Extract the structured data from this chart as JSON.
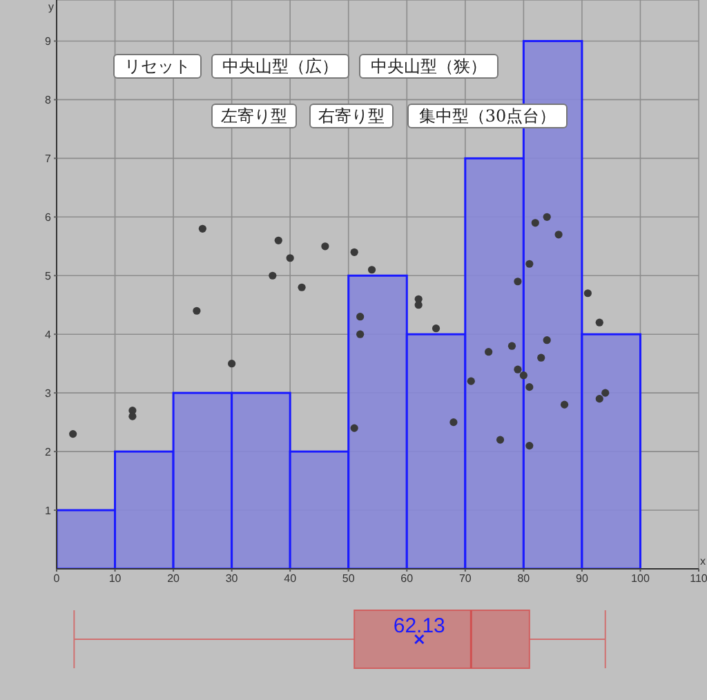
{
  "chart_data": [
    {
      "type": "histogram",
      "xlabel": "x",
      "ylabel": "y",
      "bins": [
        0,
        10,
        20,
        30,
        40,
        50,
        60,
        70,
        80,
        90,
        100
      ],
      "values": [
        1,
        2,
        3,
        3,
        2,
        5,
        4,
        7,
        9,
        4
      ],
      "color": "#8787d8",
      "series": [
        {
          "type": "scatter",
          "color": "#3a3a3a",
          "x": [
            2.8,
            13,
            13,
            25,
            24,
            30,
            38,
            37,
            40,
            42,
            46,
            51,
            54,
            52,
            52,
            51,
            62,
            62,
            65,
            68,
            71,
            74,
            76,
            78,
            79,
            81,
            82,
            84,
            86,
            79,
            80,
            81,
            83,
            84,
            81,
            87,
            91,
            93,
            93,
            94
          ],
          "values": [
            2.3,
            2.7,
            2.6,
            5.8,
            4.4,
            3.5,
            5.6,
            5.0,
            5.3,
            4.8,
            5.5,
            5.4,
            5.1,
            4.3,
            4.0,
            2.4,
            4.6,
            4.5,
            4.1,
            2.5,
            3.2,
            3.7,
            2.2,
            3.8,
            4.9,
            5.2,
            5.9,
            6.0,
            5.7,
            3.4,
            3.3,
            3.1,
            3.6,
            3.9,
            2.1,
            2.8,
            4.7,
            4.2,
            2.9,
            3.0
          ]
        }
      ],
      "xlim": [
        0,
        110
      ],
      "ylim": [
        0,
        9.7
      ],
      "xticks": [
        0,
        10,
        20,
        30,
        40,
        50,
        60,
        70,
        80,
        90,
        100,
        110
      ],
      "yticks": [
        1,
        2,
        3,
        4,
        5,
        6,
        7,
        8,
        9
      ],
      "grid": true,
      "annotations": [
        "リセット",
        "中央山型（広）",
        "中央山型（狭）",
        "左寄り型",
        "右寄り型",
        "集中型（30点台）"
      ]
    },
    {
      "type": "box",
      "orientation": "horizontal",
      "categories": [
        null
      ],
      "color": "#c88585",
      "xlim": [
        0,
        110
      ],
      "xticks": [
        0,
        10,
        20,
        30,
        40,
        50,
        60,
        70,
        80,
        90,
        100,
        110
      ],
      "tick_labels": false,
      "boxes": [
        {
          "low": 3,
          "q1": 51,
          "median": 71,
          "q3": 81,
          "high": 94,
          "mean": 62.13
        }
      ],
      "annotations": [
        "62.13"
      ]
    }
  ]
}
